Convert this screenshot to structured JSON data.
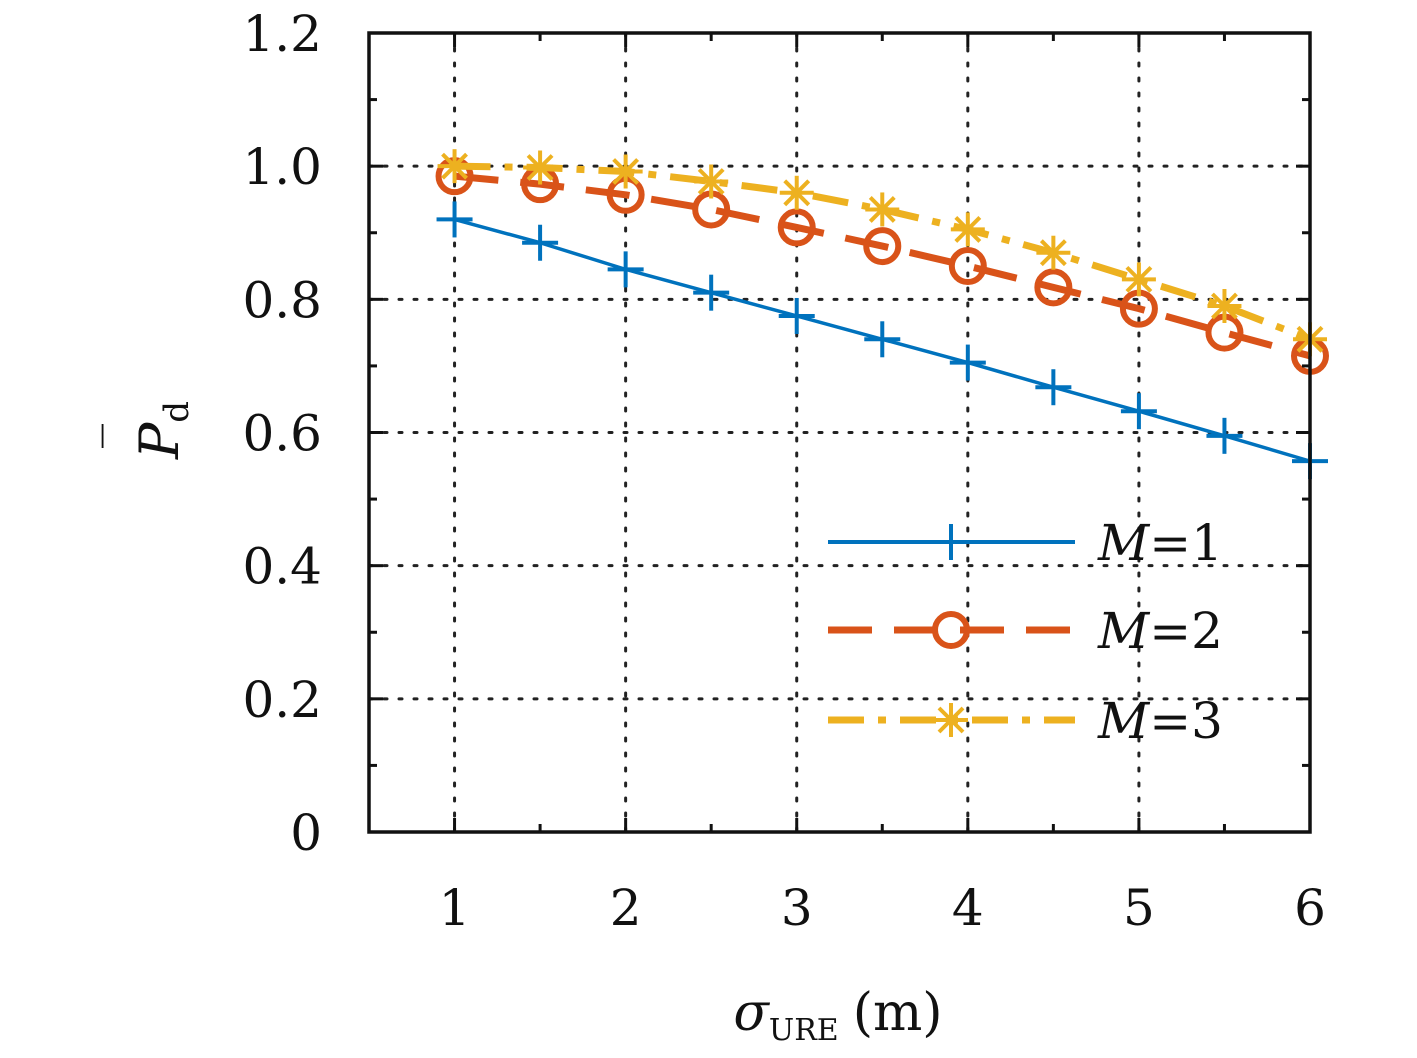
{
  "chart_data": {
    "type": "line",
    "xlabel": {
      "main": "σ",
      "sub": "URE",
      "unit": "(m)"
    },
    "ylabel": {
      "main": "P",
      "sub": "d",
      "bar": "‾"
    },
    "xlim": [
      0.5,
      6
    ],
    "ylim": [
      0,
      1.2
    ],
    "x_ticks": [
      1,
      2,
      3,
      4,
      5,
      6
    ],
    "x_tick_labels": [
      "1",
      "2",
      "3",
      "4",
      "5",
      "6"
    ],
    "y_ticks": [
      0,
      0.2,
      0.4,
      0.6,
      0.8,
      1.0,
      1.2
    ],
    "y_tick_labels": [
      "0",
      "0.2",
      "0.4",
      "0.6",
      "0.8",
      "1.0",
      "1.2"
    ],
    "grid": true,
    "legend_position": "lower-right",
    "x": [
      1,
      1.5,
      2,
      2.5,
      3,
      3.5,
      4,
      4.5,
      5,
      5.5,
      6
    ],
    "series": [
      {
        "name": "M=1",
        "legend_italic": "M",
        "legend_rest": "=1",
        "color": "#0072BD",
        "line_style": "solid",
        "marker": "plus",
        "values": [
          0.92,
          0.885,
          0.845,
          0.81,
          0.775,
          0.74,
          0.705,
          0.668,
          0.632,
          0.595,
          0.557
        ]
      },
      {
        "name": "M=2",
        "legend_italic": "M",
        "legend_rest": "=2",
        "color": "#D95319",
        "line_style": "dashed",
        "marker": "circle",
        "values": [
          0.985,
          0.973,
          0.957,
          0.935,
          0.908,
          0.88,
          0.85,
          0.818,
          0.786,
          0.75,
          0.715
        ]
      },
      {
        "name": "M=3",
        "legend_italic": "M",
        "legend_rest": "=3",
        "color": "#EDB120",
        "line_style": "dashdot",
        "marker": "asterisk",
        "values": [
          1.0,
          0.998,
          0.992,
          0.977,
          0.96,
          0.935,
          0.905,
          0.87,
          0.83,
          0.79,
          0.74
        ]
      }
    ]
  }
}
